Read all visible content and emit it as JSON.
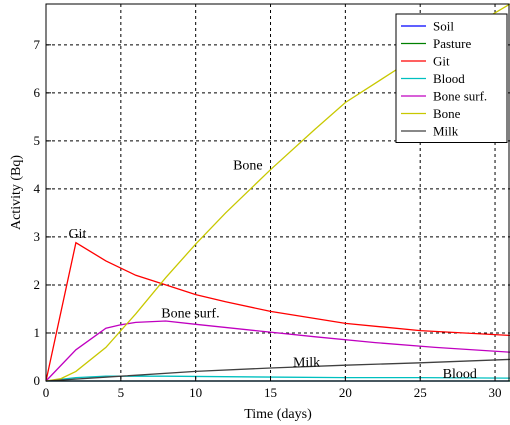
{
  "chart_data": {
    "type": "line",
    "xlabel": "Time (days)",
    "ylabel": "Activity (Bq)",
    "xlim": [
      0,
      31
    ],
    "ylim": [
      0,
      7.85
    ],
    "xticks": [
      0,
      5,
      10,
      15,
      20,
      25,
      30
    ],
    "yticks": [
      0,
      1,
      2,
      3,
      4,
      5,
      6,
      7
    ],
    "grid": true,
    "legend_position": "top-right",
    "series": [
      {
        "name": "Soil",
        "color": "#0000ff",
        "x": [
          0,
          31
        ],
        "y": [
          0,
          0
        ]
      },
      {
        "name": "Pasture",
        "color": "#008000",
        "x": [
          0,
          31
        ],
        "y": [
          0,
          0
        ]
      },
      {
        "name": "Git",
        "color": "#ff0000",
        "x": [
          0,
          2,
          4,
          6,
          8,
          10,
          12,
          15,
          20,
          25,
          31
        ],
        "y": [
          0,
          2.88,
          2.5,
          2.2,
          2.0,
          1.8,
          1.65,
          1.45,
          1.2,
          1.05,
          0.95
        ]
      },
      {
        "name": "Blood",
        "color": "#00c0c0",
        "x": [
          0,
          2,
          4,
          8,
          12,
          16,
          20,
          25,
          31
        ],
        "y": [
          0,
          0.07,
          0.1,
          0.1,
          0.09,
          0.08,
          0.07,
          0.07,
          0.06
        ]
      },
      {
        "name": "Bone surf.",
        "color": "#c000c0",
        "x": [
          0,
          2,
          4,
          5,
          6,
          8,
          10,
          14,
          18,
          22,
          26,
          31
        ],
        "y": [
          0,
          0.65,
          1.1,
          1.17,
          1.22,
          1.25,
          1.18,
          1.05,
          0.92,
          0.8,
          0.7,
          0.6
        ]
      },
      {
        "name": "Bone",
        "color": "#c8c800",
        "x": [
          0,
          1,
          2,
          4,
          6,
          8,
          10,
          12,
          15,
          18,
          20,
          24,
          28,
          31
        ],
        "y": [
          0,
          0.05,
          0.2,
          0.7,
          1.4,
          2.15,
          2.85,
          3.5,
          4.4,
          5.25,
          5.8,
          6.6,
          7.3,
          7.85
        ]
      },
      {
        "name": "Milk",
        "color": "#404040",
        "x": [
          0,
          5,
          10,
          15,
          20,
          25,
          31
        ],
        "y": [
          0,
          0.1,
          0.2,
          0.27,
          0.33,
          0.38,
          0.45
        ]
      }
    ],
    "annotations": [
      {
        "text": "Git",
        "x": 1.5,
        "y": 2.98
      },
      {
        "text": "Bone",
        "x": 12.5,
        "y": 4.4
      },
      {
        "text": "Bone surf.",
        "x": 7.7,
        "y": 1.32
      },
      {
        "text": "Milk",
        "x": 16.5,
        "y": 0.3
      },
      {
        "text": "Blood",
        "x": 26.5,
        "y": 0.06
      }
    ]
  }
}
